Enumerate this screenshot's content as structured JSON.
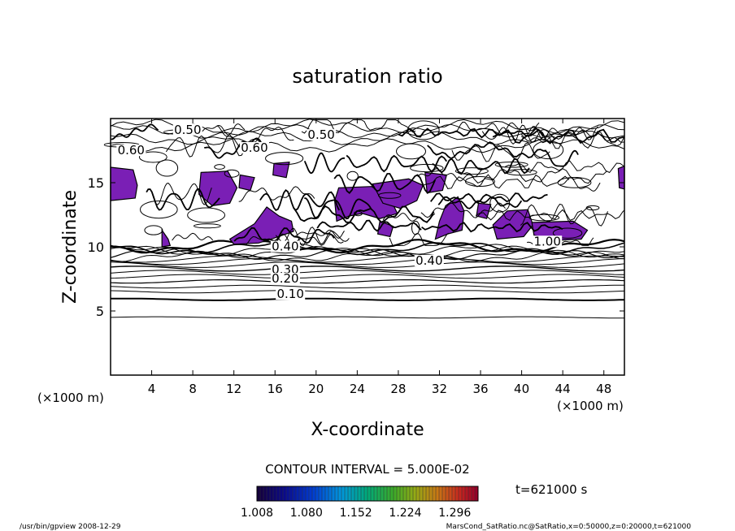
{
  "chart_data": {
    "type": "contour",
    "title": "saturation ratio",
    "xlabel": "X-coordinate",
    "ylabel": "Z-coordinate",
    "x_unit": "(×1000 m)",
    "z_unit": "(×1000 m)",
    "xlim": [
      0,
      50
    ],
    "ylim": [
      0,
      20
    ],
    "x_ticks": [
      4,
      8,
      12,
      16,
      20,
      24,
      28,
      32,
      36,
      40,
      44,
      48
    ],
    "y_ticks": [
      5,
      10,
      15
    ],
    "contour_interval_text": "CONTOUR INTERVAL = 5.000E-02",
    "time_text": "t=621000 s",
    "contour_labels": [
      {
        "text": "0.50",
        "x": 7.5,
        "z": 19.0
      },
      {
        "text": "0.50",
        "x": 20.5,
        "z": 18.6
      },
      {
        "text": "0.60",
        "x": 14.0,
        "z": 17.6
      },
      {
        "text": "0.60",
        "x": 2.0,
        "z": 17.4
      },
      {
        "text": "0.40",
        "x": 31.0,
        "z": 8.8
      },
      {
        "text": "0.40",
        "x": 17.0,
        "z": 9.9
      },
      {
        "text": "0.30",
        "x": 17.0,
        "z": 8.1
      },
      {
        "text": "0.20",
        "x": 17.0,
        "z": 7.4
      },
      {
        "text": "0.10",
        "x": 17.5,
        "z": 6.2
      },
      {
        "text": "1.00",
        "x": 42.5,
        "z": 10.3
      }
    ],
    "colorbar": {
      "ticks": [
        "1.008",
        "1.080",
        "1.152",
        "1.224",
        "1.296"
      ],
      "range": [
        1.008,
        1.33
      ]
    },
    "supersaturated_regions_color": "#7a1fb5",
    "footer_left": "/usr/bin/gpview   2008-12-29",
    "footer_right": "MarsCond_SatRatio.nc@SatRatio,x=0:50000,z=0:20000,t=621000"
  }
}
